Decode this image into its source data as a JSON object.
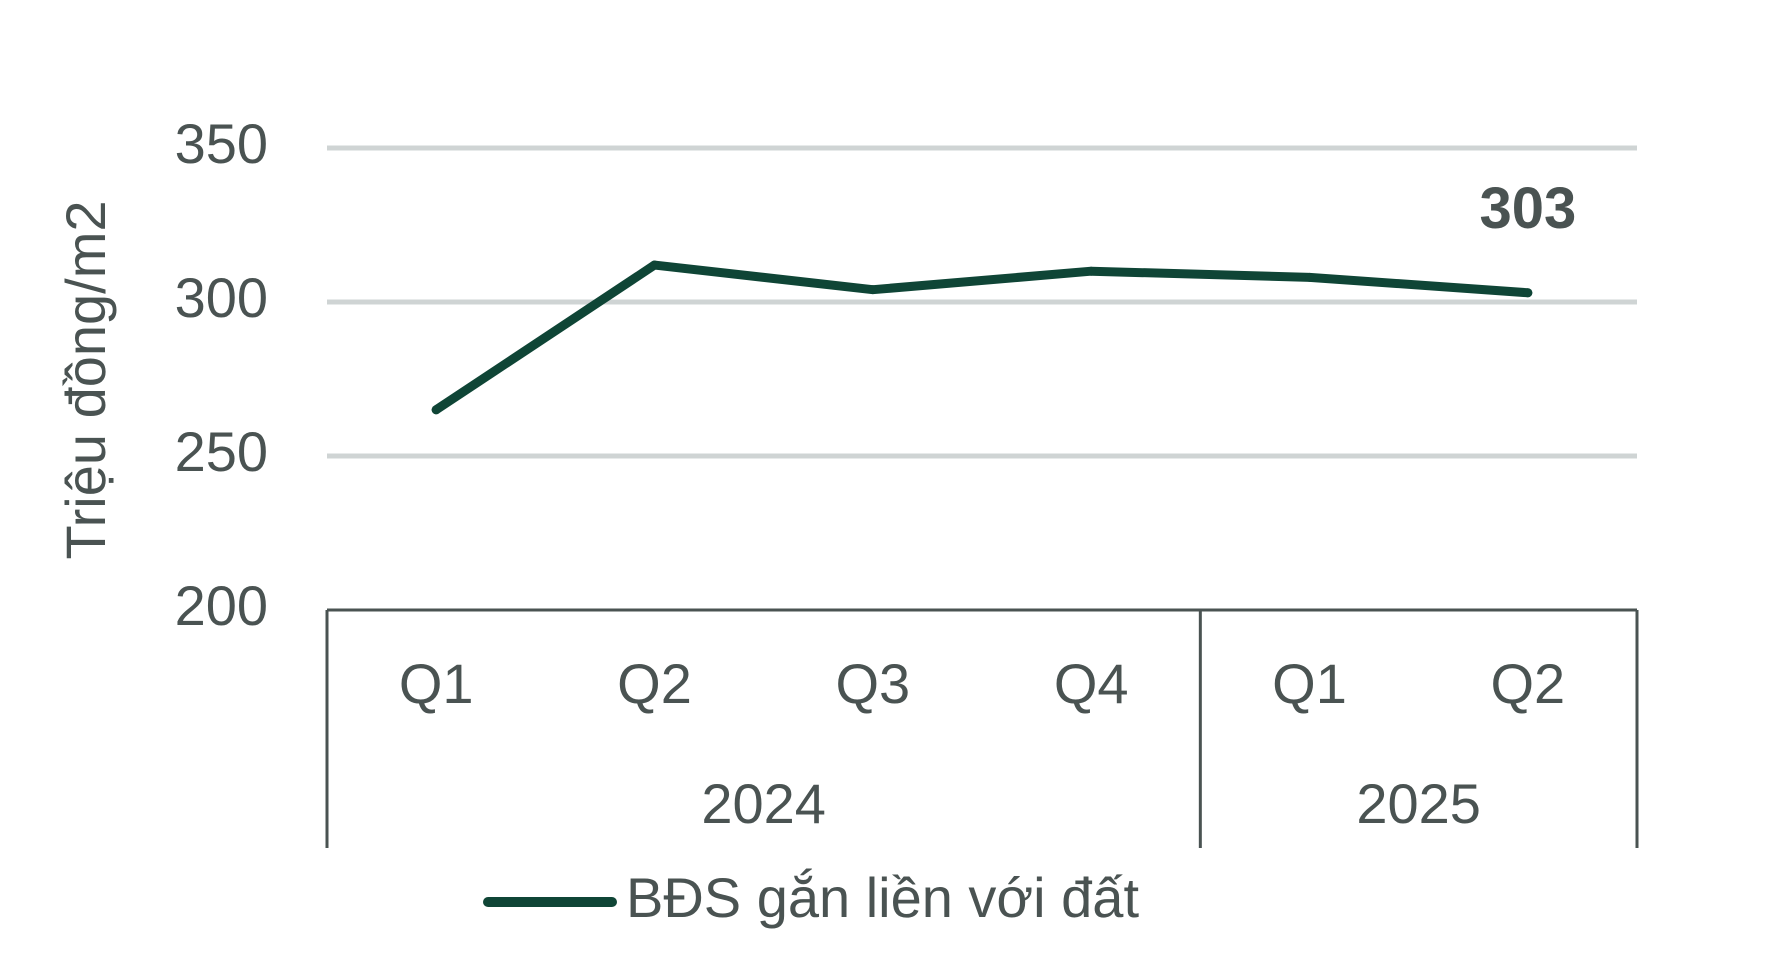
{
  "chart_data": {
    "type": "line",
    "ylabel": "Triệu đồng/m2",
    "ylim": [
      200,
      350
    ],
    "yticks": [
      "200",
      "250",
      "300",
      "350"
    ],
    "gridlines": true,
    "categories": [
      "Q1",
      "Q2",
      "Q3",
      "Q4",
      "Q1",
      "Q2"
    ],
    "groups": [
      {
        "label": "2024",
        "span": 4
      },
      {
        "label": "2025",
        "span": 2
      }
    ],
    "series": [
      {
        "name": "BĐS gắn liền với đất",
        "values": [
          265,
          312,
          304,
          310,
          308,
          303
        ]
      }
    ],
    "data_labels": [
      {
        "index": 5,
        "text": "303"
      }
    ],
    "legend_position": "bottom",
    "colors": {
      "line": "#0f4536",
      "grid": "#cfd4d4",
      "axis": "#4a5352",
      "text": "#4a5352"
    }
  }
}
